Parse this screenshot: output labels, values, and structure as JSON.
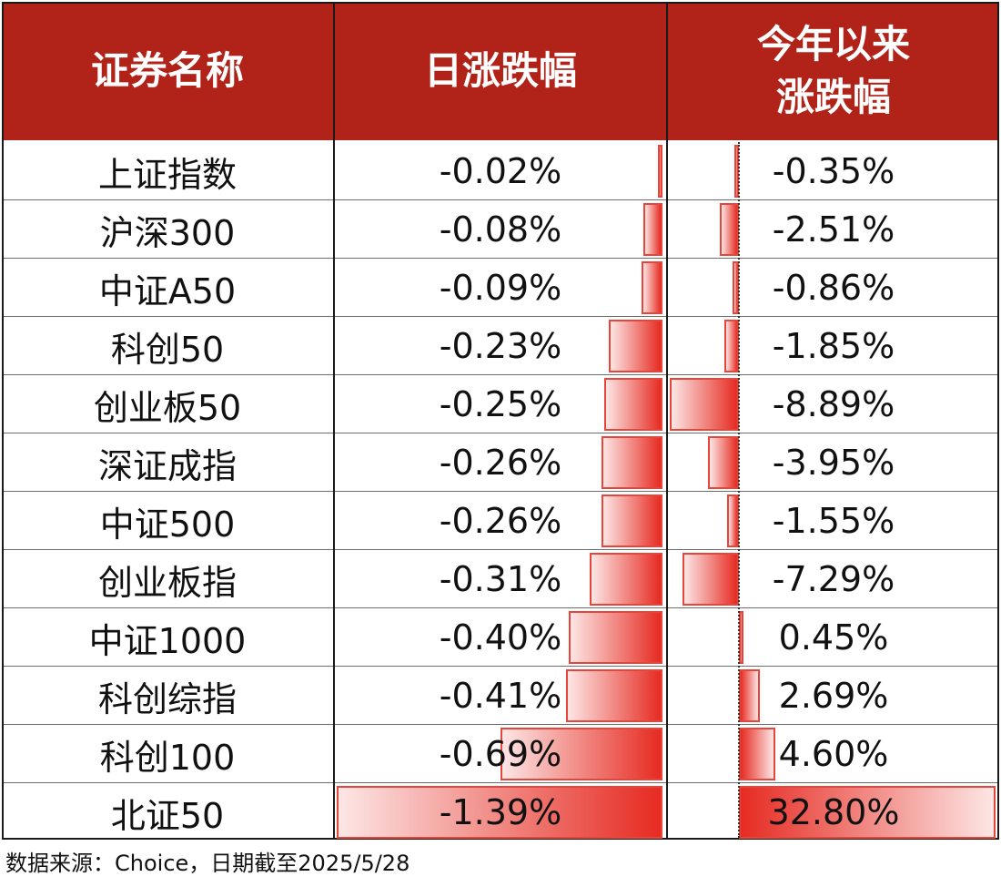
{
  "chart_data": {
    "type": "table",
    "columns": {
      "name": "证券名称",
      "daily_line1": "日涨跌幅",
      "ytd_line1": "今年以来",
      "ytd_line2": "涨跌幅"
    },
    "rows": [
      {
        "name": "上证指数",
        "daily": "-0.02%",
        "ytd": "-0.35%",
        "daily_value": -0.02,
        "ytd_value": -0.35
      },
      {
        "name": "沪深300",
        "daily": "-0.08%",
        "ytd": "-2.51%",
        "daily_value": -0.08,
        "ytd_value": -2.51
      },
      {
        "name": "中证A50",
        "daily": "-0.09%",
        "ytd": "-0.86%",
        "daily_value": -0.09,
        "ytd_value": -0.86
      },
      {
        "name": "科创50",
        "daily": "-0.23%",
        "ytd": "-1.85%",
        "daily_value": -0.23,
        "ytd_value": -1.85
      },
      {
        "name": "创业板50",
        "daily": "-0.25%",
        "ytd": "-8.89%",
        "daily_value": -0.25,
        "ytd_value": -8.89
      },
      {
        "name": "深证成指",
        "daily": "-0.26%",
        "ytd": "-3.95%",
        "daily_value": -0.26,
        "ytd_value": -3.95
      },
      {
        "name": "中证500",
        "daily": "-0.26%",
        "ytd": "-1.55%",
        "daily_value": -0.26,
        "ytd_value": -1.55
      },
      {
        "name": "创业板指",
        "daily": "-0.31%",
        "ytd": "-7.29%",
        "daily_value": -0.31,
        "ytd_value": -7.29
      },
      {
        "name": "中证1000",
        "daily": "-0.40%",
        "ytd": "0.45%",
        "daily_value": -0.4,
        "ytd_value": 0.45
      },
      {
        "name": "科创综指",
        "daily": "-0.41%",
        "ytd": "2.69%",
        "daily_value": -0.41,
        "ytd_value": 2.69
      },
      {
        "name": "科创100",
        "daily": "-0.69%",
        "ytd": "4.60%",
        "daily_value": -0.69,
        "ytd_value": 4.6
      },
      {
        "name": "北证50",
        "daily": "-1.39%",
        "ytd": "32.80%",
        "daily_value": -1.39,
        "ytd_value": 32.8
      }
    ]
  },
  "footer": "数据来源：Choice，日期截至2025/5/28",
  "colors": {
    "header_bg": "#b12318",
    "header_text": "#ffffff",
    "bar_fill": "#e62b22",
    "bar_border": "#e8453a"
  }
}
